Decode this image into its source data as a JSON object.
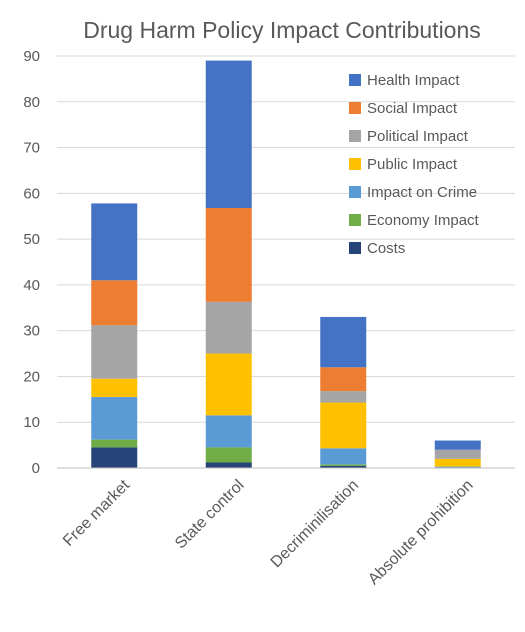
{
  "chart_data": {
    "type": "bar",
    "stacked": true,
    "title": "Drug Harm Policy Impact Contributions",
    "xlabel": "",
    "ylabel": "",
    "ylim": [
      0,
      90
    ],
    "yticks": [
      0,
      10,
      20,
      30,
      40,
      50,
      60,
      70,
      80,
      90
    ],
    "grid": true,
    "legend_position": "top-right",
    "categories": [
      "Free market",
      "State control",
      "Decriminilisation",
      "Absolute prohibition"
    ],
    "series": [
      {
        "name": "Costs",
        "color": "#264478",
        "values": [
          4.5,
          1.2,
          0.5,
          0
        ]
      },
      {
        "name": "Economy Impact",
        "color": "#70ad47",
        "values": [
          1.7,
          3.3,
          0.3,
          0
        ]
      },
      {
        "name": "Impact on Crime",
        "color": "#5b9bd5",
        "values": [
          9.3,
          7.0,
          3.5,
          0.3
        ]
      },
      {
        "name": "Public Impact",
        "color": "#ffc000",
        "values": [
          4.0,
          13.5,
          10.0,
          1.7
        ]
      },
      {
        "name": "Political Impact",
        "color": "#a5a5a5",
        "values": [
          11.7,
          11.3,
          2.5,
          2.0
        ]
      },
      {
        "name": "Social Impact",
        "color": "#ed7d31",
        "values": [
          9.8,
          20.5,
          5.2,
          0
        ]
      },
      {
        "name": "Health Impact",
        "color": "#4472c4",
        "values": [
          16.8,
          32.2,
          11.0,
          2.0
        ]
      }
    ],
    "legend_order": [
      "Health Impact",
      "Social Impact",
      "Political Impact",
      "Public Impact",
      "Impact on Crime",
      "Economy Impact",
      "Costs"
    ]
  }
}
